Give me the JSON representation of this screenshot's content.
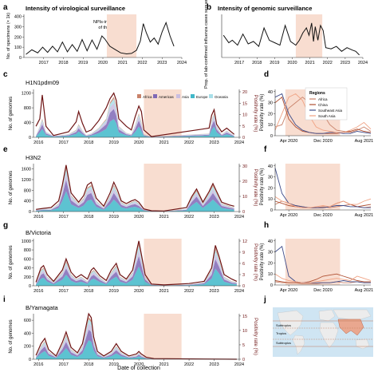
{
  "figure": {
    "panel_letters": [
      "a",
      "b",
      "c",
      "d",
      "e",
      "f",
      "g",
      "h",
      "i",
      "j"
    ],
    "colors": {
      "line": "#111111",
      "surveillance_line": "#6e1414",
      "shade": "#f8ddd0",
      "africa": "#c9826a",
      "americas": "#7f69b6",
      "asia": "#c9bde0",
      "europe": "#41b8c9",
      "oceania": "#a8dfe9",
      "china": "#b05032",
      "southeast_asia": "#3e4c8a",
      "south_asia": "#f0a283",
      "ocean": "#cfe5f3",
      "land": "#ececec",
      "highlight_land": "#e9a78f"
    }
  },
  "chart_data": [
    {
      "panel": "a",
      "type": "line",
      "title": "Intensity of virological surveillance",
      "ylabel": "No. of specimens (× 1k)",
      "x_ticks": [
        "2017",
        "2018",
        "2019",
        "2020",
        "2021",
        "2022",
        "2023",
        "2024"
      ],
      "y_ticks": [
        "0",
        "100",
        "200",
        "300",
        "400"
      ],
      "ylim": [
        0,
        420
      ],
      "shaded_range": [
        2020.2,
        2021.7
      ],
      "annotation": "NPIs-intensive phase of the pandemic",
      "x": [
        2016.1,
        2016.4,
        2016.7,
        2016.95,
        2017.2,
        2017.45,
        2017.7,
        2017.95,
        2018.2,
        2018.45,
        2018.7,
        2018.95,
        2019.2,
        2019.45,
        2019.7,
        2019.95,
        2020.1,
        2020.35,
        2020.6,
        2020.9,
        2021.2,
        2021.45,
        2021.7,
        2021.9,
        2022.05,
        2022.2,
        2022.4,
        2022.6,
        2022.8,
        2023.0,
        2023.2,
        2023.4,
        2023.6
      ],
      "y": [
        30,
        75,
        45,
        100,
        50,
        110,
        55,
        150,
        55,
        125,
        60,
        175,
        65,
        170,
        80,
        210,
        180,
        110,
        80,
        45,
        35,
        40,
        70,
        160,
        330,
        240,
        150,
        190,
        130,
        250,
        340,
        210,
        110
      ]
    },
    {
      "panel": "b",
      "type": "line",
      "title": "Intensity of genomic surveillance",
      "ylabel": "Prop. of lab-confirmed influenza cases sequenced (%)",
      "x_ticks": [
        "2017",
        "2018",
        "2019",
        "2020",
        "2021",
        "2022",
        "2023",
        "2024"
      ],
      "ylim": [
        0,
        35
      ],
      "shaded_range": [
        2020.2,
        2021.7
      ],
      "x": [
        2016.1,
        2016.4,
        2016.6,
        2016.9,
        2017.2,
        2017.5,
        2017.8,
        2018.1,
        2018.4,
        2018.7,
        2019.0,
        2019.3,
        2019.6,
        2019.9,
        2020.2,
        2020.4,
        2020.6,
        2020.8,
        2020.95,
        2021.1,
        2021.2,
        2021.3,
        2021.45,
        2021.6,
        2021.75,
        2021.9,
        2022.2,
        2022.5,
        2022.8,
        2023.1,
        2023.4,
        2023.6,
        2023.8
      ],
      "y": [
        18,
        12,
        14,
        10,
        19,
        11,
        13,
        9,
        24,
        14,
        12,
        10,
        26,
        13,
        10,
        14,
        20,
        24,
        18,
        28,
        13,
        25,
        14,
        26,
        22,
        8,
        7,
        9,
        5,
        8,
        6,
        5,
        2
      ]
    },
    {
      "panel": "c",
      "type": "area",
      "subtitle": "H1N1pdm09",
      "ylabel": "No. of genomes",
      "y2label": "Positivity rate (%)",
      "x_ticks": [
        "2016",
        "2017",
        "2018",
        "2019",
        "2020",
        "2021",
        "2022",
        "2023",
        "2024"
      ],
      "y_ticks": [
        "0",
        "400",
        "800",
        "1200"
      ],
      "y2_ticks": [
        "0",
        "5",
        "10",
        "15",
        "20"
      ],
      "ylim": [
        0,
        1300
      ],
      "shaded_range": [
        2020.2,
        2021.7
      ],
      "legend": [
        "Africa",
        "Americas",
        "Asia",
        "Europe",
        "Oceania"
      ],
      "x": [
        2015.9,
        2016.05,
        2016.15,
        2016.3,
        2016.6,
        2016.9,
        2017.2,
        2017.5,
        2017.6,
        2017.75,
        2017.9,
        2018.1,
        2018.4,
        2018.7,
        2018.85,
        2019.0,
        2019.1,
        2019.2,
        2019.5,
        2019.7,
        2019.85,
        2020.0,
        2020.1,
        2020.2,
        2020.5,
        2022.8,
        2022.9,
        2023.0,
        2023.1,
        2023.3,
        2023.5,
        2023.8
      ],
      "genomes": [
        50,
        300,
        500,
        150,
        40,
        60,
        80,
        200,
        350,
        180,
        60,
        100,
        250,
        500,
        950,
        1100,
        850,
        300,
        120,
        80,
        320,
        650,
        400,
        80,
        15,
        100,
        450,
        650,
        300,
        80,
        180,
        50
      ],
      "positivity": [
        300,
        500,
        1150,
        300,
        50,
        100,
        150,
        420,
        700,
        380,
        140,
        200,
        450,
        800,
        1050,
        1200,
        1000,
        500,
        300,
        200,
        550,
        850,
        700,
        200,
        20,
        250,
        600,
        750,
        350,
        150,
        250,
        80
      ]
    },
    {
      "panel": "d",
      "type": "line",
      "ylabel": "Positivity rate (%)",
      "x_ticks": [
        "Apr 2020",
        "Dec 2020",
        "Aug 2021"
      ],
      "y_ticks": [
        "0",
        "10",
        "20",
        "30",
        "40"
      ],
      "ylim": [
        0,
        42
      ],
      "legend_title": "Regions",
      "legend": [
        "Africa",
        "China",
        "Southeast Asia",
        "South Asia"
      ],
      "series": [
        {
          "name": "Africa",
          "values": [
            8,
            10,
            25,
            30,
            35,
            30,
            28,
            20,
            10,
            5,
            4,
            3,
            5,
            8,
            4
          ]
        },
        {
          "name": "China",
          "values": [
            30,
            35,
            15,
            8,
            4,
            3,
            2,
            2,
            2,
            2,
            3,
            4,
            6,
            4,
            3
          ]
        },
        {
          "name": "Southeast Asia",
          "values": [
            35,
            38,
            20,
            10,
            5,
            3,
            2,
            2,
            3,
            3,
            2,
            2,
            4,
            3,
            2
          ]
        },
        {
          "name": "South Asia",
          "values": [
            5,
            20,
            35,
            38,
            32,
            18,
            8,
            5,
            4,
            3,
            3,
            5,
            8,
            12,
            6
          ]
        }
      ]
    },
    {
      "panel": "e",
      "type": "area",
      "subtitle": "H3N2",
      "ylabel": "No. of genomes",
      "y2label": "Positivity rate (%)",
      "x_ticks": [
        "2016",
        "2017",
        "2018",
        "2019",
        "2020",
        "2021",
        "2022",
        "2023",
        "2024"
      ],
      "y_ticks": [
        "0",
        "400",
        "800",
        "1200",
        "1600"
      ],
      "y2_ticks": [
        "0",
        "10",
        "20",
        "30"
      ],
      "ylim": [
        0,
        1800
      ],
      "shaded_range": [
        2020.2,
        2021.7
      ],
      "x": [
        2015.9,
        2016.2,
        2016.5,
        2016.8,
        2016.95,
        2017.1,
        2017.3,
        2017.6,
        2017.8,
        2017.95,
        2018.1,
        2018.3,
        2018.6,
        2018.85,
        2019.0,
        2019.15,
        2019.3,
        2019.5,
        2019.7,
        2019.85,
        2020.0,
        2020.2,
        2020.5,
        2021.0,
        2021.9,
        2022.1,
        2022.3,
        2022.55,
        2022.8,
        2022.95,
        2023.1,
        2023.3,
        2023.6,
        2023.8
      ],
      "genomes": [
        60,
        100,
        100,
        300,
        900,
        1700,
        600,
        300,
        500,
        900,
        1000,
        400,
        150,
        600,
        1000,
        700,
        350,
        250,
        350,
        400,
        300,
        80,
        20,
        10,
        100,
        500,
        800,
        300,
        700,
        1000,
        700,
        300,
        200,
        150
      ],
      "positivity": [
        80,
        120,
        150,
        400,
        1000,
        1750,
        700,
        350,
        600,
        1000,
        1100,
        500,
        200,
        700,
        1100,
        800,
        400,
        300,
        400,
        450,
        350,
        100,
        30,
        20,
        150,
        550,
        850,
        350,
        750,
        1050,
        750,
        350,
        250,
        200
      ]
    },
    {
      "panel": "f",
      "type": "line",
      "ylabel": "Positivity rate (%)",
      "x_ticks": [
        "Apr 2020",
        "Dec 2020",
        "Aug 2021"
      ],
      "y_ticks": [
        "0",
        "10",
        "20",
        "30",
        "40"
      ],
      "ylim": [
        0,
        42
      ],
      "series": [
        {
          "name": "Africa",
          "values": [
            5,
            8,
            6,
            4,
            3,
            2,
            2,
            3,
            2,
            3,
            4,
            5,
            3,
            2,
            3
          ]
        },
        {
          "name": "China",
          "values": [
            8,
            6,
            4,
            3,
            2,
            2,
            2,
            2,
            3,
            6,
            8,
            5,
            3,
            4,
            5
          ]
        },
        {
          "name": "Southeast Asia",
          "values": [
            38,
            15,
            6,
            4,
            3,
            2,
            2,
            2,
            3,
            4,
            4,
            3,
            3,
            2,
            2
          ]
        },
        {
          "name": "South Asia",
          "values": [
            12,
            8,
            6,
            3,
            2,
            2,
            3,
            4,
            3,
            6,
            8,
            5,
            5,
            8,
            10
          ]
        }
      ]
    },
    {
      "panel": "g",
      "type": "area",
      "subtitle": "B/Victoria",
      "ylabel": "No. of genomes",
      "y2label": "Positivity rate (%)",
      "x_ticks": [
        "2016",
        "2017",
        "2018",
        "2019",
        "2020",
        "2021",
        "2022",
        "2023",
        "2024"
      ],
      "y_ticks": [
        "0",
        "200",
        "400",
        "600",
        "800",
        "1000"
      ],
      "y2_ticks": [
        "0",
        "3",
        "6",
        "9",
        "12"
      ],
      "ylim": [
        0,
        1050
      ],
      "shaded_range": [
        2020.2,
        2021.7
      ],
      "x": [
        2015.9,
        2016.1,
        2016.2,
        2016.35,
        2016.6,
        2016.95,
        2017.1,
        2017.3,
        2017.5,
        2017.7,
        2017.95,
        2018.1,
        2018.2,
        2018.45,
        2018.7,
        2018.9,
        2019.1,
        2019.25,
        2019.5,
        2019.75,
        2019.9,
        2020.0,
        2020.1,
        2020.25,
        2020.5,
        2021.0,
        2022.0,
        2022.6,
        2022.9,
        2023.05,
        2023.2,
        2023.4,
        2023.7,
        2023.9
      ],
      "genomes": [
        50,
        350,
        400,
        200,
        80,
        300,
        550,
        250,
        150,
        200,
        100,
        300,
        350,
        180,
        80,
        300,
        450,
        200,
        120,
        300,
        700,
        950,
        650,
        200,
        30,
        10,
        30,
        80,
        350,
        850,
        600,
        200,
        100,
        80
      ],
      "positivity": [
        80,
        400,
        450,
        250,
        100,
        350,
        600,
        300,
        180,
        250,
        150,
        350,
        400,
        220,
        120,
        350,
        500,
        250,
        150,
        350,
        750,
        1000,
        700,
        250,
        40,
        20,
        50,
        100,
        400,
        900,
        650,
        250,
        150,
        100
      ]
    },
    {
      "panel": "h",
      "type": "line",
      "ylabel": "Positivity rate (%)",
      "x_ticks": [
        "Apr 2020",
        "Dec 2020",
        "Aug 2021"
      ],
      "y_ticks": [
        "0",
        "10",
        "20",
        "30",
        "40"
      ],
      "ylim": [
        0,
        42
      ],
      "series": [
        {
          "name": "Africa",
          "values": [
            3,
            2,
            2,
            2,
            1,
            1,
            1,
            2,
            2,
            3,
            2,
            2,
            3,
            2,
            2
          ]
        },
        {
          "name": "China",
          "values": [
            4,
            3,
            2,
            2,
            2,
            3,
            5,
            8,
            9,
            10,
            8,
            6,
            4,
            3,
            3
          ]
        },
        {
          "name": "Southeast Asia",
          "values": [
            30,
            35,
            8,
            3,
            2,
            2,
            2,
            2,
            2,
            3,
            4,
            3,
            3,
            2,
            2
          ]
        },
        {
          "name": "South Asia",
          "values": [
            10,
            6,
            4,
            3,
            2,
            2,
            3,
            4,
            5,
            6,
            5,
            4,
            8,
            6,
            4
          ]
        }
      ]
    },
    {
      "panel": "i",
      "type": "area",
      "subtitle": "B/Yamagata",
      "ylabel": "No. of genomes",
      "y2label": "Positivity rate (%)",
      "x_ticks": [
        "2016",
        "2017",
        "2018",
        "2019",
        "2020",
        "2021",
        "2022",
        "2023",
        "2024"
      ],
      "y_ticks": [
        "0",
        "200",
        "400",
        "600"
      ],
      "y2_ticks": [
        "0",
        "5",
        "10",
        "15"
      ],
      "ylim": [
        0,
        700
      ],
      "shaded_range": [
        2020.2,
        2021.7
      ],
      "xlabel": "Date of collection",
      "x": [
        2015.9,
        2016.1,
        2016.25,
        2016.4,
        2016.7,
        2016.95,
        2017.1,
        2017.3,
        2017.55,
        2017.75,
        2017.9,
        2018.0,
        2018.1,
        2018.2,
        2018.35,
        2018.6,
        2018.9,
        2019.1,
        2019.3,
        2019.6,
        2019.9,
        2020.0,
        2020.1,
        2020.3,
        2020.6,
        2023.9
      ],
      "genomes": [
        40,
        200,
        280,
        120,
        40,
        220,
        380,
        150,
        80,
        200,
        480,
        650,
        600,
        300,
        100,
        40,
        100,
        200,
        100,
        40,
        60,
        100,
        60,
        20,
        5,
        0
      ],
      "positivity": [
        60,
        240,
        320,
        150,
        50,
        260,
        420,
        180,
        100,
        240,
        520,
        700,
        640,
        340,
        120,
        50,
        120,
        240,
        120,
        50,
        80,
        120,
        80,
        30,
        10,
        0
      ]
    }
  ],
  "map": {
    "panel": "j",
    "labels": [
      "Subtropics",
      "Tropics",
      "Subtropics"
    ]
  }
}
